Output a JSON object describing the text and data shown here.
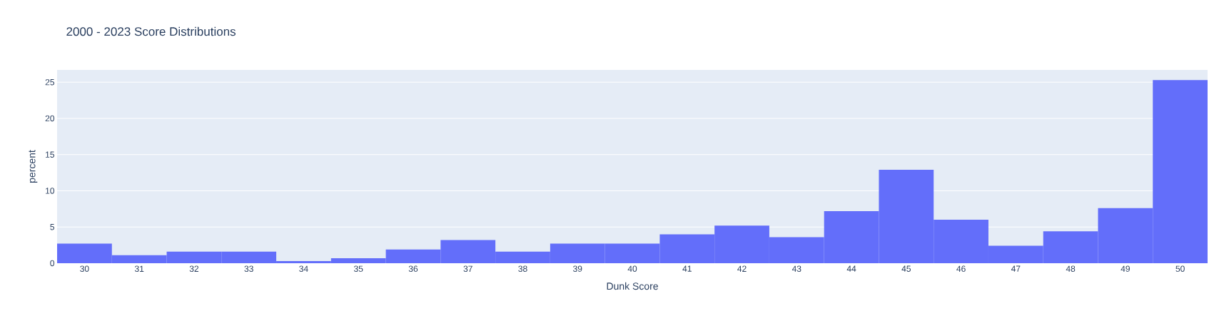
{
  "chart_data": {
    "type": "histogram",
    "title": "2000 - 2023 Score Distributions",
    "xlabel": "Dunk Score",
    "ylabel": "percent",
    "bins": [
      29.5,
      30.5,
      31.5,
      32.5,
      33.5,
      34.5,
      35.5,
      36.5,
      37.5,
      38.5,
      39.5,
      40.5,
      41.5,
      42.5,
      43.5,
      44.5,
      45.5,
      46.5,
      47.5,
      48.5,
      49.5,
      50.5
    ],
    "values": [
      2.7,
      1.1,
      1.6,
      1.6,
      0.3,
      0.7,
      1.9,
      3.2,
      1.6,
      2.7,
      2.7,
      4.0,
      5.2,
      3.6,
      7.2,
      12.9,
      6.0,
      2.4,
      4.4,
      7.6,
      25.3
    ],
    "color": "#636efa",
    "xlim": [
      29.5,
      50.5
    ],
    "xticks": [
      30,
      31,
      32,
      33,
      34,
      35,
      36,
      37,
      38,
      39,
      40,
      41,
      42,
      43,
      44,
      45,
      46,
      47,
      48,
      49,
      50
    ],
    "ylim": [
      0,
      26.7
    ],
    "yticks": [
      0,
      5,
      10,
      15,
      20,
      25
    ],
    "grid": "y"
  }
}
